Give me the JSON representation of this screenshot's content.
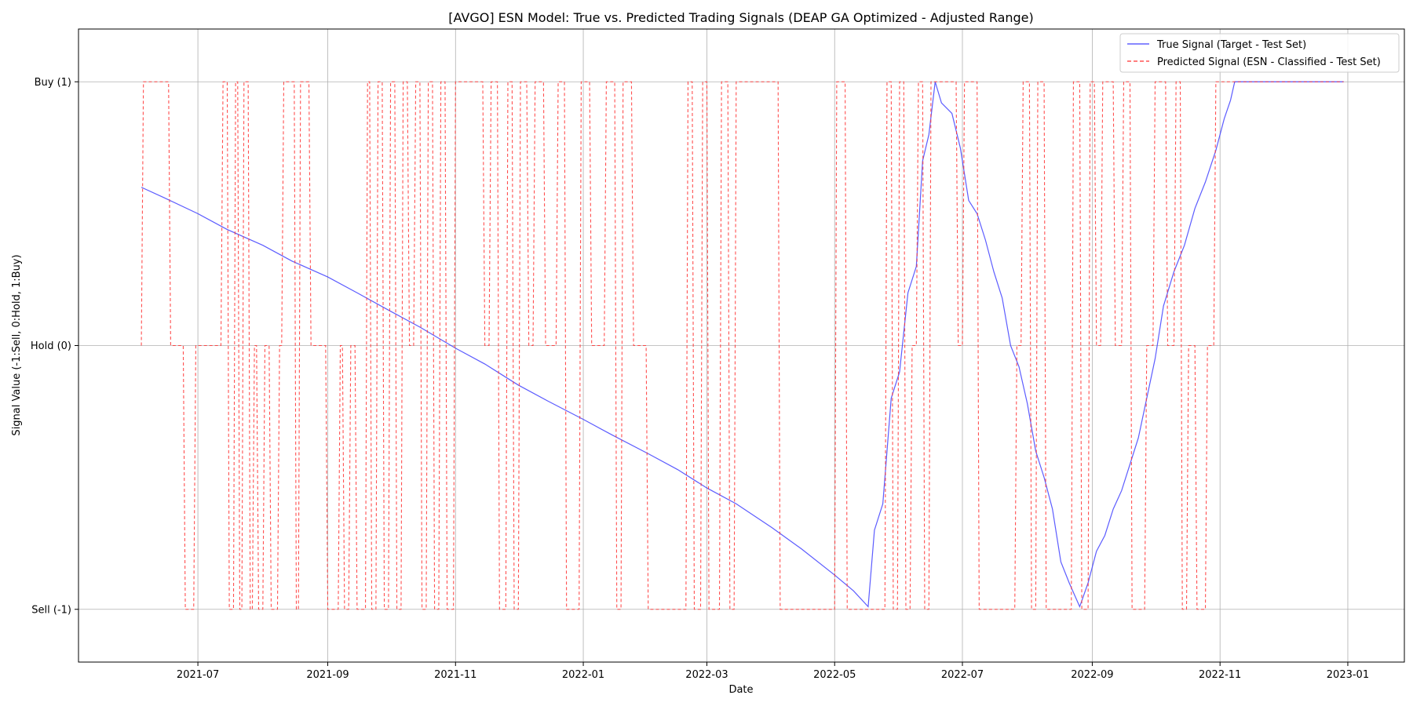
{
  "chart_data": {
    "type": "line",
    "title": "[AVGO] ESN Model: True vs. Predicted Trading Signals (DEAP GA Optimized - Adjusted Range)",
    "xlabel": "Date",
    "ylabel": "Signal Value (-1:Sell, 0:Hold, 1:Buy)",
    "xlim": [
      "2021-05-05",
      "2023-01-28"
    ],
    "ylim": [
      -1.2,
      1.2
    ],
    "grid": true,
    "legend_position": "top-right",
    "x_ticks": [
      {
        "date": "2021-07-01",
        "label": "2021-07"
      },
      {
        "date": "2021-09-01",
        "label": "2021-09"
      },
      {
        "date": "2021-11-01",
        "label": "2021-11"
      },
      {
        "date": "2022-01-01",
        "label": "2022-01"
      },
      {
        "date": "2022-03-01",
        "label": "2022-03"
      },
      {
        "date": "2022-05-01",
        "label": "2022-05"
      },
      {
        "date": "2022-07-01",
        "label": "2022-07"
      },
      {
        "date": "2022-09-01",
        "label": "2022-09"
      },
      {
        "date": "2022-11-01",
        "label": "2022-11"
      },
      {
        "date": "2023-01-01",
        "label": "2023-01"
      }
    ],
    "y_ticks": [
      {
        "value": 1,
        "label": "Buy (1)"
      },
      {
        "value": 0,
        "label": "Hold (0)"
      },
      {
        "value": -1,
        "label": "Sell (-1)"
      }
    ],
    "series": [
      {
        "name": "True Signal (Target - Test Set)",
        "color": "#4040ff",
        "style": "solid",
        "points": [
          [
            "2021-06-04",
            0.6
          ],
          [
            "2021-06-15",
            0.56
          ],
          [
            "2021-07-01",
            0.5
          ],
          [
            "2021-07-15",
            0.44
          ],
          [
            "2021-08-01",
            0.38
          ],
          [
            "2021-08-15",
            0.32
          ],
          [
            "2021-09-01",
            0.26
          ],
          [
            "2021-09-15",
            0.2
          ],
          [
            "2021-10-01",
            0.13
          ],
          [
            "2021-10-15",
            0.07
          ],
          [
            "2021-11-01",
            -0.01
          ],
          [
            "2021-11-15",
            -0.07
          ],
          [
            "2021-12-01",
            -0.15
          ],
          [
            "2021-12-15",
            -0.21
          ],
          [
            "2022-01-01",
            -0.28
          ],
          [
            "2022-01-15",
            -0.34
          ],
          [
            "2022-02-01",
            -0.41
          ],
          [
            "2022-02-15",
            -0.47
          ],
          [
            "2022-03-01",
            -0.54
          ],
          [
            "2022-03-15",
            -0.6
          ],
          [
            "2022-04-01",
            -0.69
          ],
          [
            "2022-04-15",
            -0.77
          ],
          [
            "2022-05-01",
            -0.87
          ],
          [
            "2022-05-10",
            -0.93
          ],
          [
            "2022-05-17",
            -0.99
          ],
          [
            "2022-05-20",
            -0.7
          ],
          [
            "2022-05-24",
            -0.6
          ],
          [
            "2022-05-28",
            -0.2
          ],
          [
            "2022-06-01",
            -0.1
          ],
          [
            "2022-06-05",
            0.2
          ],
          [
            "2022-06-09",
            0.3
          ],
          [
            "2022-06-12",
            0.7
          ],
          [
            "2022-06-15",
            0.8
          ],
          [
            "2022-06-18",
            1.0
          ],
          [
            "2022-06-21",
            0.92
          ],
          [
            "2022-06-26",
            0.88
          ],
          [
            "2022-06-30",
            0.75
          ],
          [
            "2022-07-04",
            0.55
          ],
          [
            "2022-07-08",
            0.5
          ],
          [
            "2022-07-12",
            0.4
          ],
          [
            "2022-07-16",
            0.28
          ],
          [
            "2022-07-20",
            0.18
          ],
          [
            "2022-07-24",
            0.0
          ],
          [
            "2022-07-28",
            -0.08
          ],
          [
            "2022-08-01",
            -0.22
          ],
          [
            "2022-08-05",
            -0.4
          ],
          [
            "2022-08-09",
            -0.5
          ],
          [
            "2022-08-13",
            -0.62
          ],
          [
            "2022-08-17",
            -0.82
          ],
          [
            "2022-08-21",
            -0.9
          ],
          [
            "2022-08-26",
            -0.99
          ],
          [
            "2022-08-30",
            -0.9
          ],
          [
            "2022-09-03",
            -0.78
          ],
          [
            "2022-09-07",
            -0.72
          ],
          [
            "2022-09-11",
            -0.62
          ],
          [
            "2022-09-15",
            -0.55
          ],
          [
            "2022-09-19",
            -0.45
          ],
          [
            "2022-09-23",
            -0.35
          ],
          [
            "2022-09-27",
            -0.2
          ],
          [
            "2022-10-01",
            -0.05
          ],
          [
            "2022-10-05",
            0.15
          ],
          [
            "2022-10-10",
            0.28
          ],
          [
            "2022-10-15",
            0.38
          ],
          [
            "2022-10-20",
            0.52
          ],
          [
            "2022-10-25",
            0.62
          ],
          [
            "2022-10-30",
            0.74
          ],
          [
            "2022-11-03",
            0.86
          ],
          [
            "2022-11-06",
            0.93
          ],
          [
            "2022-11-08",
            1.0
          ],
          [
            "2022-12-01",
            1.0
          ],
          [
            "2022-12-30",
            1.0
          ]
        ]
      },
      {
        "name": "Predicted Signal (ESN - Classified - Test Set)",
        "color": "#ff3030",
        "style": "dashed",
        "steps": [
          [
            "2021-06-04",
            0
          ],
          [
            "2021-06-05",
            1
          ],
          [
            "2021-06-18",
            0
          ],
          [
            "2021-06-25",
            -1
          ],
          [
            "2021-06-30",
            0
          ],
          [
            "2021-07-13",
            1
          ],
          [
            "2021-07-16",
            -1
          ],
          [
            "2021-07-19",
            1
          ],
          [
            "2021-07-21",
            -1
          ],
          [
            "2021-07-23",
            1
          ],
          [
            "2021-07-26",
            -1
          ],
          [
            "2021-07-28",
            0
          ],
          [
            "2021-07-30",
            -1
          ],
          [
            "2021-08-02",
            0
          ],
          [
            "2021-08-05",
            -1
          ],
          [
            "2021-08-09",
            0
          ],
          [
            "2021-08-11",
            1
          ],
          [
            "2021-08-17",
            -1
          ],
          [
            "2021-08-19",
            1
          ],
          [
            "2021-08-24",
            0
          ],
          [
            "2021-09-01",
            -1
          ],
          [
            "2021-09-07",
            0
          ],
          [
            "2021-09-09",
            -1
          ],
          [
            "2021-09-12",
            0
          ],
          [
            "2021-09-15",
            -1
          ],
          [
            "2021-09-20",
            1
          ],
          [
            "2021-09-22",
            -1
          ],
          [
            "2021-09-25",
            1
          ],
          [
            "2021-09-28",
            -1
          ],
          [
            "2021-10-01",
            1
          ],
          [
            "2021-10-04",
            -1
          ],
          [
            "2021-10-07",
            1
          ],
          [
            "2021-10-10",
            0
          ],
          [
            "2021-10-13",
            1
          ],
          [
            "2021-10-16",
            -1
          ],
          [
            "2021-10-19",
            1
          ],
          [
            "2021-10-22",
            -1
          ],
          [
            "2021-10-25",
            1
          ],
          [
            "2021-10-28",
            -1
          ],
          [
            "2021-11-01",
            1
          ],
          [
            "2021-11-15",
            0
          ],
          [
            "2021-11-18",
            1
          ],
          [
            "2021-11-22",
            -1
          ],
          [
            "2021-11-26",
            1
          ],
          [
            "2021-11-29",
            -1
          ],
          [
            "2021-12-02",
            1
          ],
          [
            "2021-12-06",
            0
          ],
          [
            "2021-12-09",
            1
          ],
          [
            "2021-12-14",
            0
          ],
          [
            "2021-12-20",
            1
          ],
          [
            "2021-12-24",
            -1
          ],
          [
            "2021-12-31",
            1
          ],
          [
            "2022-01-05",
            0
          ],
          [
            "2022-01-12",
            1
          ],
          [
            "2022-01-17",
            -1
          ],
          [
            "2022-01-20",
            1
          ],
          [
            "2022-01-25",
            0
          ],
          [
            "2022-02-01",
            -1
          ],
          [
            "2022-02-20",
            1
          ],
          [
            "2022-02-23",
            -1
          ],
          [
            "2022-02-27",
            1
          ],
          [
            "2022-03-02",
            -1
          ],
          [
            "2022-03-08",
            1
          ],
          [
            "2022-03-12",
            -1
          ],
          [
            "2022-03-15",
            1
          ],
          [
            "2022-04-05",
            -1
          ],
          [
            "2022-05-02",
            1
          ],
          [
            "2022-05-07",
            -1
          ],
          [
            "2022-05-26",
            1
          ],
          [
            "2022-05-29",
            -1
          ],
          [
            "2022-06-01",
            1
          ],
          [
            "2022-06-04",
            -1
          ],
          [
            "2022-06-07",
            0
          ],
          [
            "2022-06-10",
            1
          ],
          [
            "2022-06-13",
            -1
          ],
          [
            "2022-06-16",
            1
          ],
          [
            "2022-06-29",
            0
          ],
          [
            "2022-07-02",
            1
          ],
          [
            "2022-07-09",
            -1
          ],
          [
            "2022-07-27",
            0
          ],
          [
            "2022-07-30",
            1
          ],
          [
            "2022-08-03",
            -1
          ],
          [
            "2022-08-06",
            1
          ],
          [
            "2022-08-10",
            -1
          ],
          [
            "2022-08-23",
            1
          ],
          [
            "2022-08-27",
            -1
          ],
          [
            "2022-08-31",
            1
          ],
          [
            "2022-09-03",
            0
          ],
          [
            "2022-09-06",
            1
          ],
          [
            "2022-09-12",
            0
          ],
          [
            "2022-09-16",
            1
          ],
          [
            "2022-09-20",
            -1
          ],
          [
            "2022-09-27",
            0
          ],
          [
            "2022-10-01",
            1
          ],
          [
            "2022-10-07",
            0
          ],
          [
            "2022-10-11",
            1
          ],
          [
            "2022-10-14",
            -1
          ],
          [
            "2022-10-17",
            0
          ],
          [
            "2022-10-21",
            -1
          ],
          [
            "2022-10-26",
            0
          ],
          [
            "2022-10-30",
            1
          ],
          [
            "2022-12-30",
            1
          ]
        ]
      }
    ]
  }
}
